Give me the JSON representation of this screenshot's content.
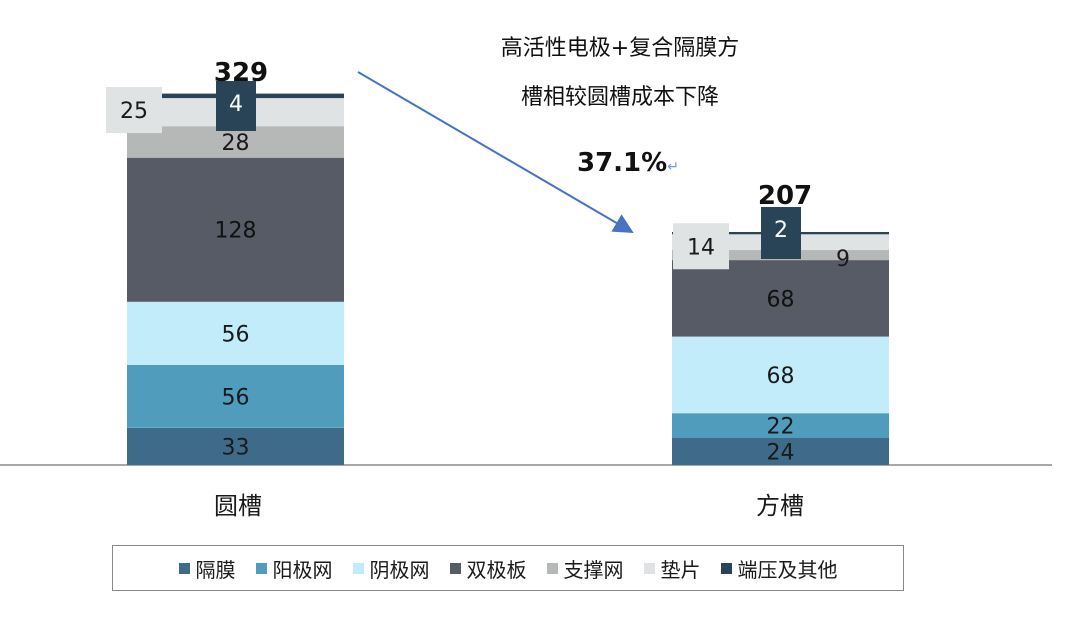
{
  "chart_data": {
    "type": "bar",
    "stacked": true,
    "categories": [
      "圆槽",
      "方槽"
    ],
    "series": [
      {
        "name": "隔膜",
        "values": [
          33,
          24
        ],
        "color": "#3f6b8a"
      },
      {
        "name": "阳极网",
        "values": [
          56,
          22
        ],
        "color": "#4f9cbc"
      },
      {
        "name": "阴极网",
        "values": [
          56,
          68
        ],
        "color": "#c2ecfa"
      },
      {
        "name": "双极板",
        "values": [
          128,
          68
        ],
        "color": "#565b65"
      },
      {
        "name": "支撑网",
        "values": [
          28,
          9
        ],
        "color": "#b5b8b7"
      },
      {
        "name": "垫片",
        "values": [
          25,
          14
        ],
        "color": "#dfe3e3"
      },
      {
        "name": "端压及其他",
        "values": [
          4,
          2
        ],
        "color": "#2a4457"
      }
    ],
    "totals": [
      "329",
      "207"
    ],
    "annotation": {
      "line1": "高活性电极+复合隔膜方",
      "line2": "槽相较圆槽成本下降",
      "percent": "37.1%",
      "mark": "↵"
    },
    "legend_position": "bottom",
    "grid": false
  }
}
